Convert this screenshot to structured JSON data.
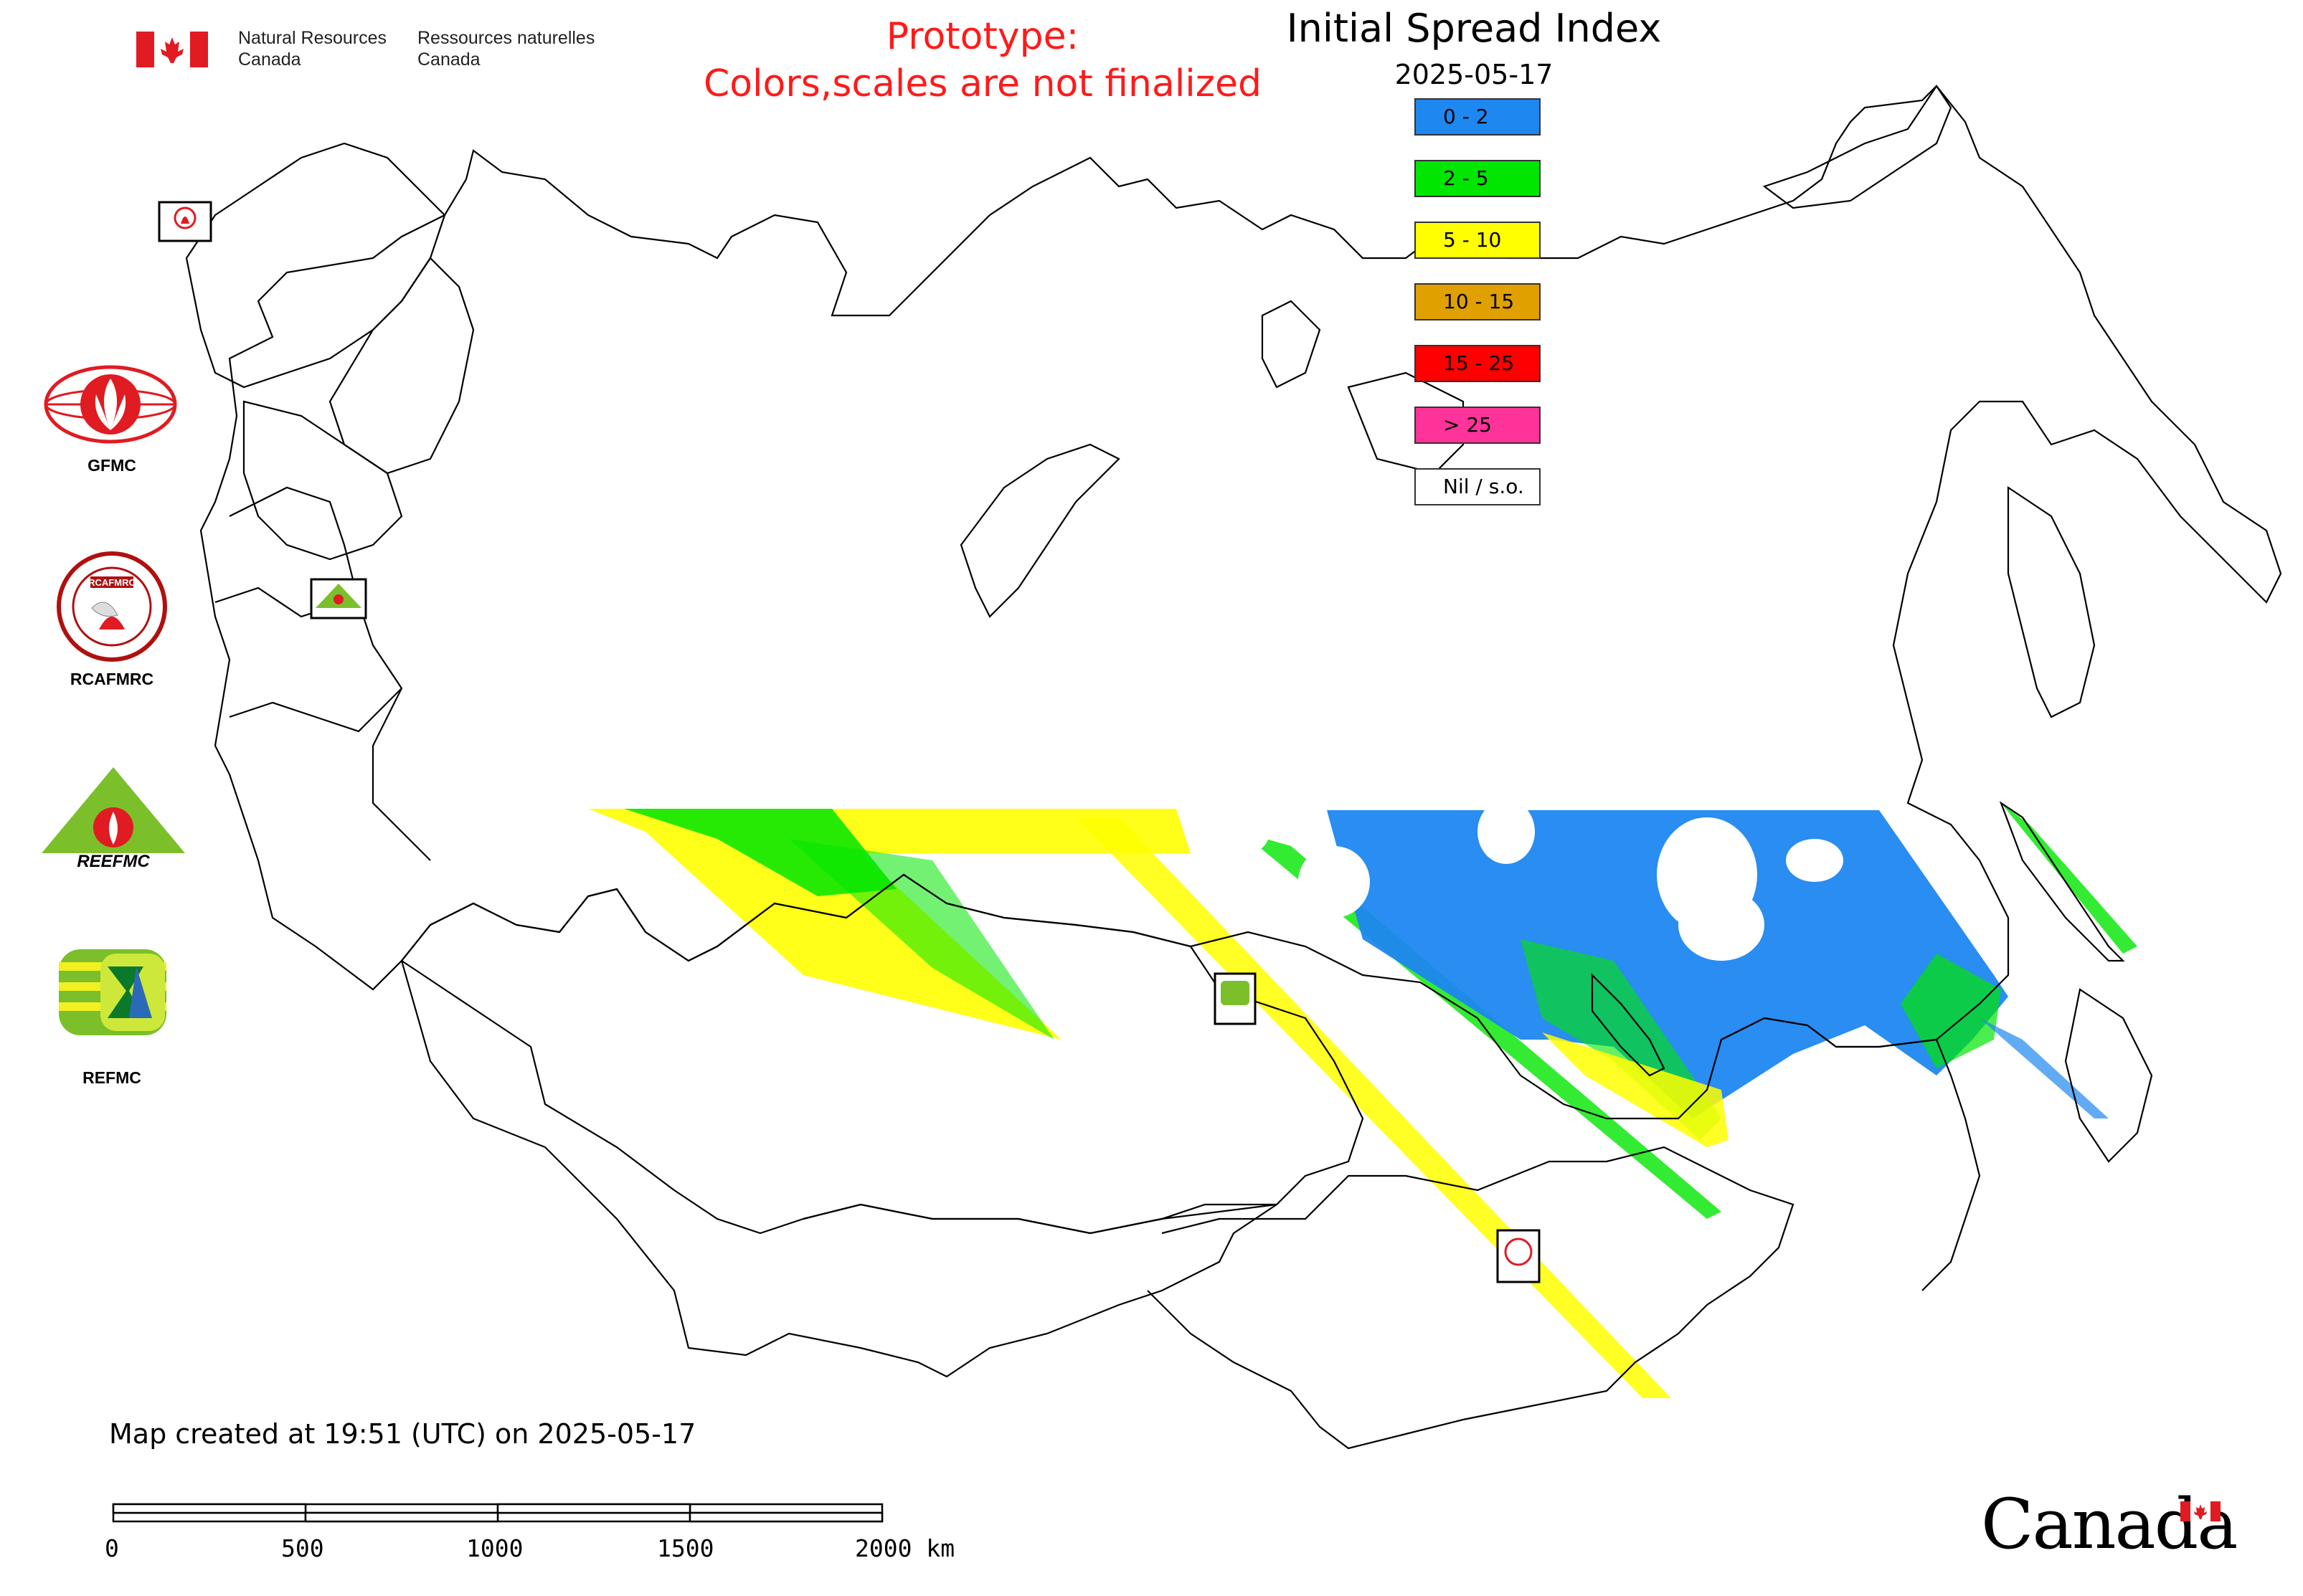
{
  "header": {
    "agency_en_line1": "Natural Resources",
    "agency_en_line2": "Canada",
    "agency_fr_line1": "Ressources naturelles",
    "agency_fr_line2": "Canada",
    "prototype_line1": "Prototype:",
    "prototype_line2": "Colors,scales are not finalized",
    "title": "Initial Spread Index",
    "date": "2025-05-17"
  },
  "legend": [
    {
      "label": "0 - 2",
      "color": "#1e87f0"
    },
    {
      "label": "2 - 5",
      "color": "#00e600"
    },
    {
      "label": "5 - 10",
      "color": "#ffff00"
    },
    {
      "label": "10 - 15",
      "color": "#e0a000"
    },
    {
      "label": "15 - 25",
      "color": "#ff0000"
    },
    {
      "label": "> 25",
      "color": "#ff3399"
    },
    {
      "label": "Nil / s.o.",
      "color": "#ffffff"
    }
  ],
  "logos": {
    "gfmc": "GFMC",
    "rcafmrc": "RCAFMRC",
    "reefmc": "REEFMC",
    "refmc": "REFMC",
    "rcafmrc_badge_text": "RCAFMRC",
    "reefmc_badge_text": "REEFMC"
  },
  "footer": {
    "created": "Map created at 19:51 (UTC) on 2025-05-17",
    "scale_labels": [
      "0",
      "500",
      "1000",
      "1500",
      "2000 km"
    ],
    "wordmark": "Canada"
  },
  "colors": {
    "flag_red": "#e01b22",
    "prototype_red": "#ff1a1a",
    "outline": "#000000"
  }
}
